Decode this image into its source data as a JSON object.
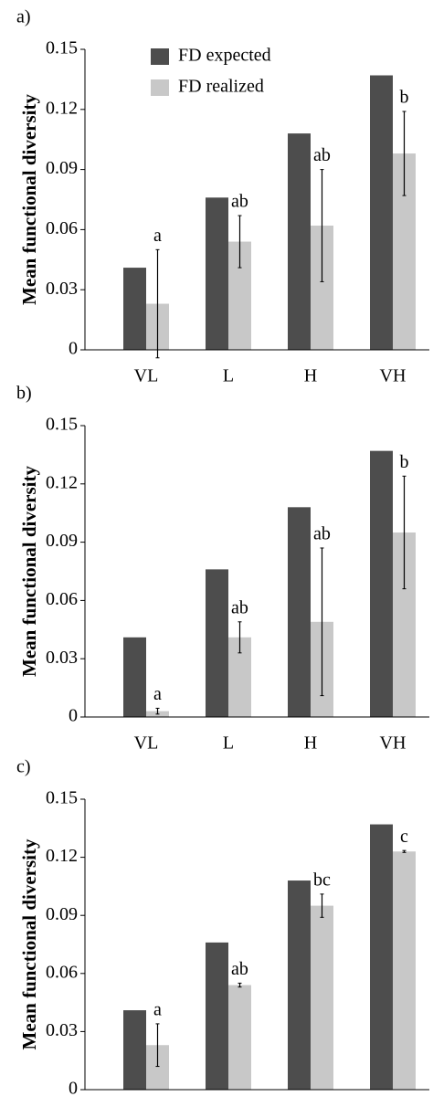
{
  "chart_data": [
    {
      "type": "bar",
      "panel_label": "a)",
      "y_label": "Mean functional diversity",
      "categories": [
        "VL",
        "L",
        "H",
        "VH"
      ],
      "series": [
        {
          "name": "FD expected",
          "color": "#4d4d4d",
          "values": [
            0.041,
            0.076,
            0.108,
            0.137
          ]
        },
        {
          "name": "FD realized",
          "color": "#c8c8c8",
          "values": [
            0.023,
            0.054,
            0.062,
            0.098
          ],
          "errors": [
            0.027,
            0.013,
            0.028,
            0.021
          ]
        }
      ],
      "annotations": [
        "a",
        "ab",
        "ab",
        "b"
      ],
      "ylim": [
        0,
        0.15
      ],
      "yticks": [
        0,
        0.03,
        0.06,
        0.09,
        0.12,
        0.15
      ],
      "grid": false,
      "legend": "upper-left"
    },
    {
      "type": "bar",
      "panel_label": "b)",
      "y_label": "Mean functional diversity",
      "categories": [
        "VL",
        "L",
        "H",
        "VH"
      ],
      "series": [
        {
          "color": "#4d4d4d",
          "values": [
            0.041,
            0.076,
            0.108,
            0.137
          ]
        },
        {
          "color": "#c8c8c8",
          "values": [
            0.003,
            0.041,
            0.049,
            0.095
          ],
          "errors": [
            0.0015,
            0.008,
            0.038,
            0.029
          ]
        }
      ],
      "annotations": [
        "a",
        "ab",
        "ab",
        "b"
      ],
      "ylim": [
        0,
        0.15
      ],
      "yticks": [
        0,
        0.03,
        0.06,
        0.09,
        0.12,
        0.15
      ],
      "grid": false
    },
    {
      "type": "bar",
      "panel_label": "c)",
      "y_label": "Mean functional diversity",
      "categories": [
        null,
        null,
        null,
        null
      ],
      "series": [
        {
          "color": "#4d4d4d",
          "values": [
            0.041,
            0.076,
            0.108,
            0.137
          ]
        },
        {
          "color": "#c8c8c8",
          "values": [
            0.023,
            0.054,
            0.095,
            0.123
          ],
          "errors": [
            0.011,
            0.001,
            0.006,
            0.0005
          ]
        }
      ],
      "annotations": [
        "a",
        "ab",
        "bc",
        "c"
      ],
      "ylim": [
        0,
        0.15
      ],
      "yticks": [
        0,
        0.03,
        0.06,
        0.09,
        0.12,
        0.15
      ],
      "grid": false
    }
  ]
}
